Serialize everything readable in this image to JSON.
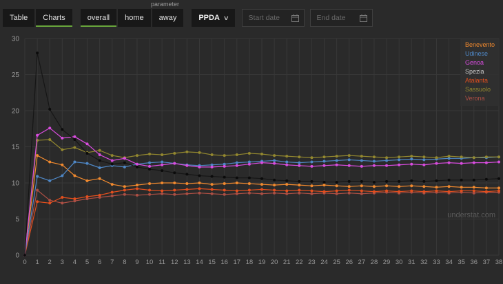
{
  "toolbar": {
    "parameter_label": "parameter",
    "table_label": "Table",
    "charts_label": "Charts",
    "tabs": {
      "overall": "overall",
      "home": "home",
      "away": "away"
    },
    "parameter_dropdown": {
      "value": "PPDA",
      "chevron_icon": "chevron-down-icon"
    },
    "start_date_placeholder": "Start date",
    "end_date_placeholder": "End date",
    "calendar_icon": "calendar-icon",
    "accent_color": "#69a73c"
  },
  "watermark": "understat.com",
  "chart_data": {
    "type": "line",
    "title": "",
    "xlabel": "",
    "ylabel": "",
    "xlim": [
      0,
      38
    ],
    "ylim": [
      0,
      30
    ],
    "y_ticks": [
      0,
      5,
      10,
      15,
      20,
      25,
      30
    ],
    "x_ticks": [
      0,
      1,
      2,
      3,
      4,
      5,
      6,
      7,
      8,
      9,
      10,
      11,
      12,
      13,
      14,
      15,
      16,
      17,
      18,
      19,
      20,
      21,
      22,
      23,
      24,
      25,
      26,
      27,
      28,
      29,
      30,
      31,
      32,
      33,
      34,
      35,
      36,
      37,
      38
    ],
    "grid": true,
    "grid_color": "#383838",
    "axis_color": "#9b9b9b",
    "legend_position": "top-right",
    "z_order": [
      6,
      4,
      0,
      1,
      5,
      2,
      3
    ],
    "series": [
      {
        "name": "Benevento",
        "color": "#f28a2e",
        "legend_color": "#f28a2e",
        "values": [
          0,
          13.8,
          12.9,
          12.5,
          11,
          10.3,
          10.6,
          9.8,
          9.5,
          9.7,
          9.9,
          10,
          10,
          9.9,
          10,
          9.8,
          9.9,
          10,
          9.9,
          9.8,
          9.7,
          9.8,
          9.7,
          9.6,
          9.7,
          9.6,
          9.5,
          9.6,
          9.5,
          9.6,
          9.5,
          9.6,
          9.5,
          9.4,
          9.5,
          9.4,
          9.4,
          9.3,
          9.3
        ]
      },
      {
        "name": "Udinese",
        "color": "#4f88c7",
        "legend_color": "#4f88c7",
        "values": [
          0,
          10.9,
          10.3,
          11,
          12.9,
          12.7,
          12.1,
          12.4,
          12.2,
          12.6,
          12.8,
          12.9,
          12.7,
          12.5,
          12.4,
          12.5,
          12.6,
          12.8,
          12.9,
          13,
          13.1,
          12.9,
          12.8,
          12.9,
          13,
          13.1,
          13.2,
          13.1,
          13,
          13.1,
          13.2,
          13.3,
          13.2,
          13.3,
          13.4,
          13.4,
          13.5,
          13.5,
          13.6
        ]
      },
      {
        "name": "Genoa",
        "color": "#da4ce0",
        "legend_color": "#da4ce0",
        "values": [
          0,
          16.6,
          17.6,
          16.2,
          16.4,
          15.4,
          13.9,
          13.1,
          13.4,
          12.6,
          12.3,
          12.5,
          12.7,
          12.4,
          12.2,
          12.2,
          12.3,
          12.4,
          12.6,
          12.8,
          12.7,
          12.5,
          12.4,
          12.3,
          12.4,
          12.5,
          12.4,
          12.3,
          12.4,
          12.4,
          12.5,
          12.6,
          12.5,
          12.7,
          12.8,
          12.7,
          12.8,
          12.8,
          12.9
        ]
      },
      {
        "name": "Spezia",
        "color": "#161616",
        "dot_color": "#0b0b0b",
        "legend_color": "#c9c9c9",
        "values": [
          0,
          28,
          20.2,
          17.4,
          16,
          14.1,
          13.1,
          12.6,
          12.8,
          12.2,
          11.9,
          11.7,
          11.4,
          11.2,
          11,
          10.9,
          10.8,
          10.7,
          10.7,
          10.6,
          10.4,
          10.3,
          10.2,
          10.2,
          10.1,
          10.1,
          10.2,
          10.2,
          10.1,
          10.2,
          10.2,
          10.3,
          10.2,
          10.3,
          10.4,
          10.4,
          10.4,
          10.5,
          10.6
        ]
      },
      {
        "name": "Atalanta",
        "color": "#e34f1e",
        "legend_color": "#e34f1e",
        "values": [
          0,
          7.4,
          7.2,
          8,
          7.8,
          8.1,
          8.3,
          8.7,
          9,
          9.2,
          9,
          8.9,
          9,
          9.1,
          9.2,
          9.1,
          9,
          8.9,
          9,
          9.1,
          9,
          8.9,
          9,
          8.9,
          8.8,
          8.9,
          9,
          8.9,
          8.8,
          8.9,
          8.8,
          8.9,
          8.8,
          8.9,
          8.8,
          8.9,
          8.9,
          8.8,
          8.9
        ]
      },
      {
        "name": "Sassuolo",
        "color": "#93882f",
        "legend_color": "#93882f",
        "values": [
          0,
          15.9,
          16,
          14.6,
          14.9,
          14.2,
          14.5,
          13.8,
          13.5,
          13.8,
          14,
          13.9,
          14.1,
          14.3,
          14.2,
          13.9,
          13.8,
          13.9,
          14.1,
          14,
          13.8,
          13.7,
          13.6,
          13.5,
          13.6,
          13.7,
          13.8,
          13.7,
          13.6,
          13.5,
          13.6,
          13.7,
          13.6,
          13.5,
          13.7,
          13.6,
          13.5,
          13.6,
          13.6
        ]
      },
      {
        "name": "Verona",
        "color": "#ad4f44",
        "legend_color": "#ad4f44",
        "values": [
          0,
          9,
          7.6,
          7.2,
          7.5,
          7.8,
          8,
          8.2,
          8.4,
          8.3,
          8.4,
          8.5,
          8.4,
          8.5,
          8.6,
          8.5,
          8.4,
          8.5,
          8.6,
          8.5,
          8.6,
          8.5,
          8.6,
          8.5,
          8.6,
          8.5,
          8.6,
          8.5,
          8.6,
          8.7,
          8.6,
          8.7,
          8.6,
          8.7,
          8.6,
          8.7,
          8.6,
          8.7,
          8.7
        ]
      }
    ]
  }
}
